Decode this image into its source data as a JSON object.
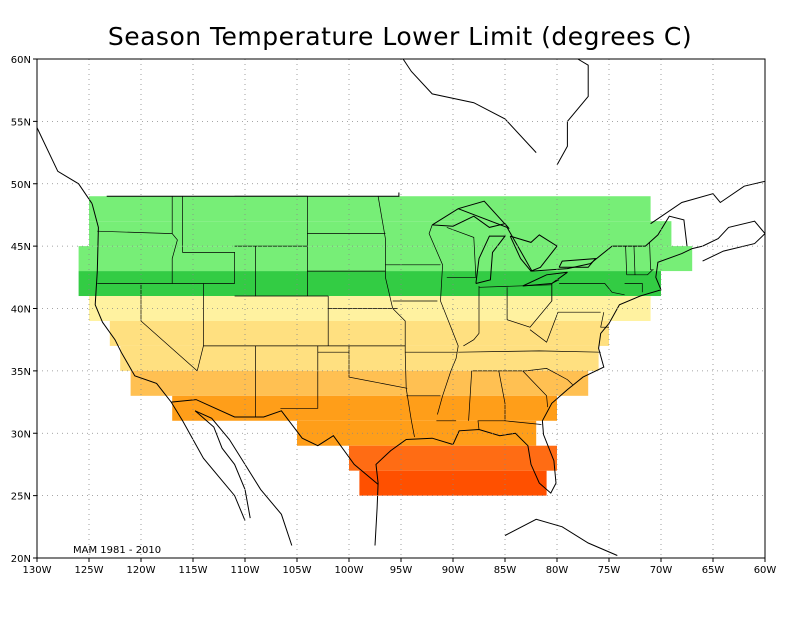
{
  "title": "Season Temperature Lower Limit (degrees C)",
  "note": "MAM 1981 - 2010",
  "axes": {
    "x_ticks": [
      "130W",
      "125W",
      "120W",
      "115W",
      "110W",
      "105W",
      "100W",
      "95W",
      "90W",
      "85W",
      "80W",
      "75W",
      "70W",
      "65W",
      "60W"
    ],
    "y_ticks": [
      "20N",
      "25N",
      "30N",
      "35N",
      "40N",
      "45N",
      "50N",
      "55N",
      "60N"
    ]
  },
  "colors": {
    "green_dark": "#33cc44",
    "green_mid": "#77ee77",
    "green_light": "#b3f2a6",
    "yellow_pale": "#fff2a0",
    "yellow": "#ffe080",
    "orange_light": "#ffc052",
    "orange": "#ff9e19",
    "orange_red": "#ff6c14",
    "red": "#ff5000"
  },
  "chart_data": {
    "type": "heatmap",
    "title": "Season Temperature Lower Limit (degrees C)",
    "lon_range": [
      -130,
      -60
    ],
    "lat_range": [
      20,
      60
    ],
    "grid_step_deg": 2,
    "cells": [
      {
        "lat_band": [
          47,
          49
        ],
        "lon_band": [
          -125,
          -71
        ],
        "class": "green_mid"
      },
      {
        "lat_band": [
          45,
          47
        ],
        "lon_band": [
          -125,
          -69
        ],
        "class": "green_mid"
      },
      {
        "lat_band": [
          43,
          45
        ],
        "lon_band": [
          -126,
          -67
        ],
        "class": "green_mid"
      },
      {
        "lat_band": [
          41,
          43
        ],
        "lon_band": [
          -126,
          -70
        ],
        "class": "green_dark"
      },
      {
        "lat_band": [
          39,
          41
        ],
        "lon_band": [
          -125,
          -71
        ],
        "class": "yellow_pale"
      },
      {
        "lat_band": [
          37,
          39
        ],
        "lon_band": [
          -123,
          -75
        ],
        "class": "yellow"
      },
      {
        "lat_band": [
          35,
          37
        ],
        "lon_band": [
          -122,
          -76
        ],
        "class": "yellow"
      },
      {
        "lat_band": [
          33,
          35
        ],
        "lon_band": [
          -121,
          -77
        ],
        "class": "orange_light"
      },
      {
        "lat_band": [
          31,
          33
        ],
        "lon_band": [
          -117,
          -80
        ],
        "class": "orange"
      },
      {
        "lat_band": [
          29,
          31
        ],
        "lon_band": [
          -105,
          -82
        ],
        "class": "orange"
      },
      {
        "lat_band": [
          27,
          29
        ],
        "lon_band": [
          -100,
          -80
        ],
        "class": "orange_red"
      },
      {
        "lat_band": [
          25,
          27
        ],
        "lon_band": [
          -99,
          -81
        ],
        "class": "red"
      }
    ]
  }
}
